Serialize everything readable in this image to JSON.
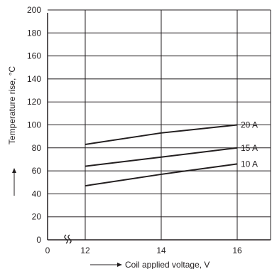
{
  "chart_data": {
    "type": "line",
    "title": "",
    "xlabel": "Coil applied voltage, V",
    "ylabel": "Temperature rise, °C",
    "x_ticks": [
      "0",
      "12",
      "14",
      "16"
    ],
    "y_ticks": [
      "0",
      "20",
      "40",
      "60",
      "80",
      "100",
      "120",
      "140",
      "160",
      "180",
      "200"
    ],
    "xlim": [
      12,
      17
    ],
    "ylim": [
      0,
      200
    ],
    "x_axis_break": true,
    "grid": true,
    "colors": {
      "line": "#231f20",
      "grid": "#231f20"
    },
    "series": [
      {
        "name": "20 A",
        "x": [
          12,
          14,
          16
        ],
        "y": [
          83,
          93,
          100
        ]
      },
      {
        "name": "15 A",
        "x": [
          12,
          14,
          16
        ],
        "y": [
          64,
          72,
          80
        ]
      },
      {
        "name": "10 A",
        "x": [
          12,
          14,
          16
        ],
        "y": [
          47,
          57,
          66
        ]
      }
    ]
  }
}
